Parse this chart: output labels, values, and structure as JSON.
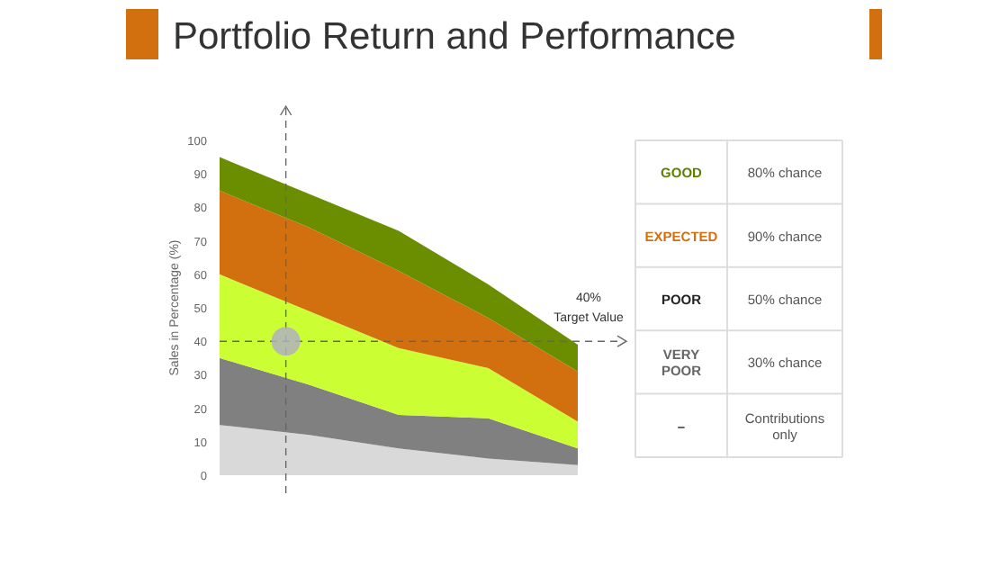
{
  "chart_data": [
    {
      "type": "area",
      "title": "Portfolio Return and Performance",
      "ylabel": "Sales in Percentage (%)",
      "stacked": true,
      "categories": [
        null,
        null,
        null,
        null,
        null
      ],
      "ylim": [
        0,
        100
      ],
      "yticks": [
        0,
        10,
        20,
        30,
        40,
        50,
        60,
        70,
        80,
        90,
        100
      ],
      "grid": false,
      "series": [
        {
          "color": "#d9d9d9",
          "values": [
            15,
            12,
            8,
            5,
            3
          ]
        },
        {
          "color": "#808080",
          "values": [
            20,
            15,
            10,
            12,
            5
          ]
        },
        {
          "color": "#ccff33",
          "values": [
            25,
            22,
            20,
            15,
            8
          ]
        },
        {
          "color": "#d2700f",
          "values": [
            25,
            25,
            23,
            15,
            15
          ]
        },
        {
          "color": "#6b8e00",
          "values": [
            10,
            10,
            12,
            10,
            8
          ]
        }
      ],
      "ref_lines": [
        {
          "axis": "y",
          "value": 40,
          "label": "40%\nTarget Value",
          "line_style": "dashed",
          "color": "#666666"
        }
      ]
    },
    {
      "type": "other",
      "annotations": [
        "GOOD",
        "80% chance",
        "EXPECTED",
        "90% chance",
        "POOR",
        "50% chance",
        "VERY\nPOOR",
        "30% chance",
        "–",
        "Contributions\nonly"
      ]
    }
  ]
}
